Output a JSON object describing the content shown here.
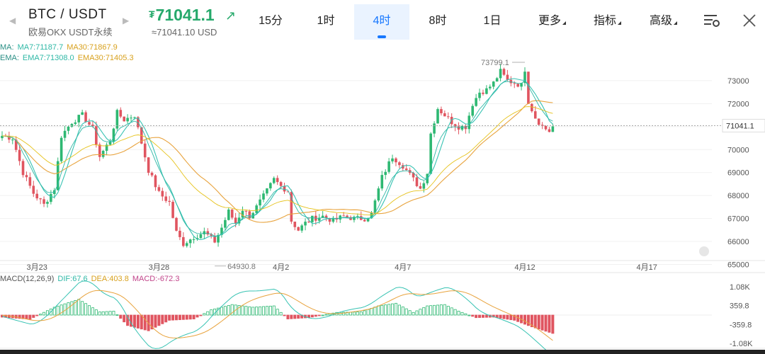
{
  "header": {
    "prev_arrow": "◀",
    "next_arrow": "▶",
    "pair": "BTC / USDT",
    "exchange": "欧易OKX USDT永续",
    "price_symbol": "₮",
    "price": "71041.1",
    "price_arrow": "↗",
    "price_usd": "≈71041.10 USD"
  },
  "timeframes": [
    {
      "label": "15分",
      "active": false
    },
    {
      "label": "1时",
      "active": false
    },
    {
      "label": "4时",
      "active": true
    },
    {
      "label": "8时",
      "active": false
    },
    {
      "label": "1日",
      "active": false
    }
  ],
  "menus": {
    "more": "更多",
    "indicators": "指标",
    "advanced": "高级"
  },
  "icons": {
    "settings": "chart-settings-icon",
    "close": "close-icon"
  },
  "indicators": {
    "ma": {
      "prefix": "MA:",
      "ma7": "MA7:71187.7",
      "ma30": "MA30:71867.9"
    },
    "ema": {
      "prefix": "EMA:",
      "ema7": "EMA7:71308.0",
      "ema30": "EMA30:71405.3"
    },
    "macd": {
      "prefix": "MACD(12,26,9)",
      "dif": "DIF:67.6",
      "dea": "DEA:403.8",
      "macd": "MACD:-672.3"
    }
  },
  "colors": {
    "up": "#2eb872",
    "down": "#e05560",
    "ma7": "#38c3b3",
    "ma30": "#e8a33d",
    "ema7": "#2fb8a6",
    "ema30": "#e6c21a",
    "macd": "#c1448a",
    "accent": "#1677ff"
  },
  "chart_data": {
    "type": "candlestick",
    "x_ticks": [
      "3月23",
      "3月28",
      "4月2",
      "4月7",
      "4月12",
      "4月17"
    ],
    "y_ticks": [
      65000,
      66000,
      67000,
      68000,
      69000,
      70000,
      71000,
      72000,
      73000
    ],
    "y_tick_labels": [
      "65000",
      "66000",
      "67000",
      "68000",
      "69000",
      "70000",
      "72000",
      "73000"
    ],
    "ylim": [
      64800,
      74600
    ],
    "current_price_label": "71041.1",
    "high_label": "73799.1",
    "low_label": "64930.8",
    "anchors": [
      [
        0,
        70600
      ],
      [
        3,
        70500
      ],
      [
        6,
        69000
      ],
      [
        9,
        68100
      ],
      [
        12,
        67600
      ],
      [
        15,
        68300
      ],
      [
        17,
        70600
      ],
      [
        20,
        71200
      ],
      [
        23,
        71500
      ],
      [
        26,
        70900
      ],
      [
        28,
        69700
      ],
      [
        31,
        70400
      ],
      [
        33,
        71600
      ],
      [
        35,
        71300
      ],
      [
        38,
        71500
      ],
      [
        40,
        70300
      ],
      [
        42,
        69100
      ],
      [
        45,
        68100
      ],
      [
        48,
        67700
      ],
      [
        50,
        66400
      ],
      [
        52,
        65900
      ],
      [
        55,
        66200
      ],
      [
        58,
        66400
      ],
      [
        61,
        66000
      ],
      [
        63,
        66600
      ],
      [
        65,
        67300
      ],
      [
        67,
        66800
      ],
      [
        69,
        67400
      ],
      [
        71,
        67100
      ],
      [
        73,
        67500
      ],
      [
        76,
        68200
      ],
      [
        78,
        68700
      ],
      [
        80,
        68400
      ],
      [
        82,
        68200
      ],
      [
        83,
        66900
      ],
      [
        85,
        66500
      ],
      [
        87,
        66800
      ],
      [
        89,
        67000
      ],
      [
        92,
        67100
      ],
      [
        95,
        66900
      ],
      [
        98,
        67100
      ],
      [
        101,
        67000
      ],
      [
        104,
        67000
      ],
      [
        106,
        67200
      ],
      [
        109,
        68800
      ],
      [
        112,
        69700
      ],
      [
        115,
        69300
      ],
      [
        118,
        68700
      ],
      [
        120,
        68300
      ],
      [
        122,
        69000
      ],
      [
        123,
        70700
      ],
      [
        125,
        71800
      ],
      [
        127,
        71500
      ],
      [
        129,
        71200
      ],
      [
        131,
        71000
      ],
      [
        133,
        71000
      ],
      [
        135,
        72000
      ],
      [
        137,
        72500
      ],
      [
        139,
        72600
      ],
      [
        141,
        72900
      ],
      [
        143,
        73400
      ],
      [
        145,
        73000
      ],
      [
        147,
        72900
      ],
      [
        149,
        72800
      ],
      [
        150,
        73500
      ],
      [
        151,
        72100
      ],
      [
        153,
        71400
      ],
      [
        155,
        71000
      ],
      [
        157,
        70800
      ],
      [
        158,
        71000
      ]
    ],
    "macd": {
      "ylim": [
        -1080,
        1080
      ],
      "y_tick_labels": [
        "1.08K",
        "359.8",
        "-359.8",
        "-1.08K"
      ],
      "hist_anchors": [
        [
          0,
          -80
        ],
        [
          8,
          -160
        ],
        [
          15,
          300
        ],
        [
          22,
          600
        ],
        [
          28,
          120
        ],
        [
          32,
          150
        ],
        [
          36,
          -400
        ],
        [
          42,
          -600
        ],
        [
          48,
          -200
        ],
        [
          55,
          -150
        ],
        [
          60,
          200
        ],
        [
          66,
          400
        ],
        [
          72,
          300
        ],
        [
          78,
          350
        ],
        [
          82,
          -150
        ],
        [
          88,
          -100
        ],
        [
          96,
          100
        ],
        [
          103,
          120
        ],
        [
          108,
          350
        ],
        [
          113,
          450
        ],
        [
          118,
          100
        ],
        [
          122,
          350
        ],
        [
          127,
          400
        ],
        [
          131,
          150
        ],
        [
          136,
          -100
        ],
        [
          141,
          -80
        ],
        [
          147,
          -200
        ],
        [
          152,
          -450
        ],
        [
          158,
          -700
        ]
      ]
    }
  }
}
